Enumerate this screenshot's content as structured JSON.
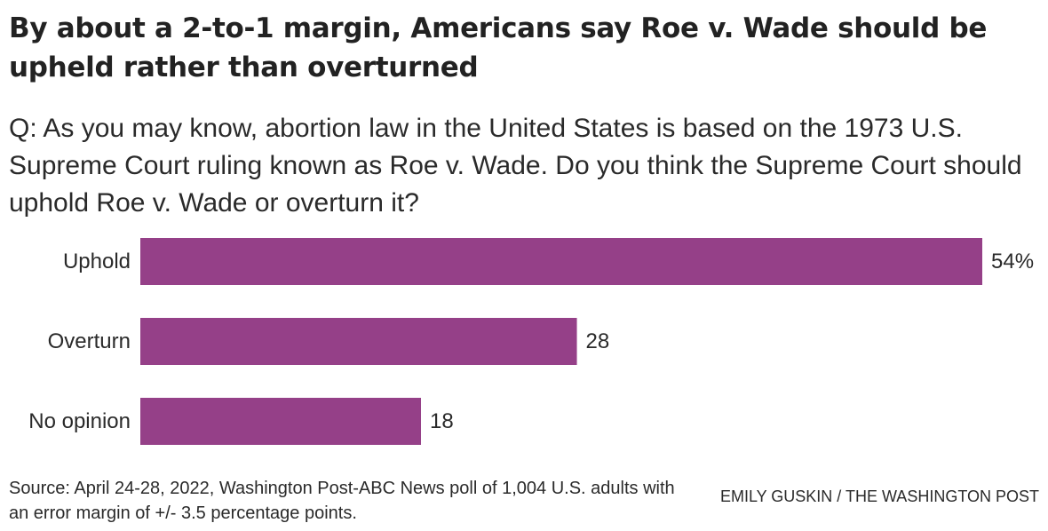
{
  "title": "By about a 2-to-1 margin, Americans say Roe v. Wade should be upheld rather than overturned",
  "subtitle": "Q: As you may know, abortion law in the United States is based on the 1973 U.S. Supreme Court ruling known as Roe v. Wade. Do you think the Supreme Court should uphold Roe v. Wade or overturn it?",
  "source": "Source: April 24-28, 2022, Washington Post-ABC News poll of 1,004 U.S. adults with an error margin of +/- 3.5 percentage points.",
  "credit": "EMILY GUSKIN / THE WASHINGTON POST",
  "chart_data": {
    "type": "bar",
    "orientation": "horizontal",
    "title": "By about a 2-to-1 margin, Americans say Roe v. Wade should be upheld rather than overturned",
    "categories": [
      "Uphold",
      "Overturn",
      "No opinion"
    ],
    "values": [
      54,
      28,
      18
    ],
    "value_labels": [
      "54%",
      "28",
      "18"
    ],
    "xlim": [
      0,
      54
    ],
    "grid": false,
    "legend": "none",
    "bar_color": "#954088"
  }
}
